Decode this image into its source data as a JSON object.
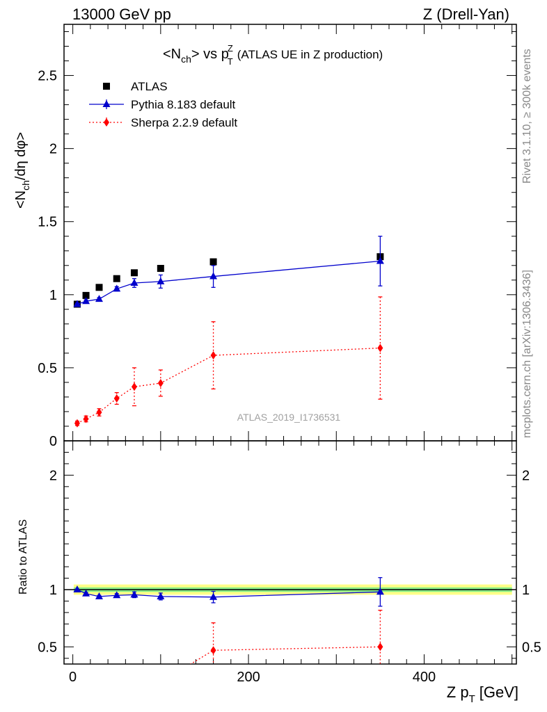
{
  "header": {
    "left": "13000 GeV pp",
    "right": "Z (Drell-Yan)"
  },
  "side_text": {
    "rivet": "Rivet 3.1.10, ≥ 300k events",
    "mcplots": "mcplots.cern.ch [arXiv:1306.3436]"
  },
  "watermark": "ATLAS_2019_I1736531",
  "chart_data": [
    {
      "type": "scatter",
      "title": "<N_ch> vs p_T^Z (ATLAS UE in Z production)",
      "title_main": "<N",
      "title_sub1": "ch",
      "title_mid": "> vs p",
      "title_sup": "Z",
      "title_sub2": "T",
      "title_rest": "(ATLAS UE in Z production)",
      "ylabel": "<N_ch/dη dφ>",
      "ylabel_a": "<N",
      "ylabel_sub": "ch",
      "ylabel_b": "/dη dφ>",
      "xlim": [
        -10,
        505
      ],
      "ylim": [
        0,
        2.85
      ],
      "yticks": [
        0,
        0.5,
        1,
        1.5,
        2,
        2.5
      ],
      "ytick_labels": [
        "0",
        "0.5",
        "1",
        "1.5",
        "2",
        "2.5"
      ],
      "legend_position": "top-left",
      "series": [
        {
          "name": "ATLAS",
          "color": "#000000",
          "marker": "square",
          "line": "none",
          "x": [
            5,
            15,
            30,
            50,
            70,
            100,
            160,
            350
          ],
          "y": [
            0.935,
            0.995,
            1.05,
            1.11,
            1.15,
            1.18,
            1.225,
            1.26
          ],
          "err": [
            0.01,
            0.01,
            0.01,
            0.01,
            0.012,
            0.012,
            0.015,
            0.02
          ]
        },
        {
          "name": "Pythia 8.183 default",
          "color": "#0000cc",
          "marker": "triangle",
          "line": "solid",
          "x": [
            5,
            15,
            30,
            50,
            70,
            100,
            160,
            350
          ],
          "y": [
            0.935,
            0.955,
            0.97,
            1.04,
            1.08,
            1.09,
            1.125,
            1.23
          ],
          "err": [
            0.005,
            0.01,
            0.01,
            0.015,
            0.03,
            0.045,
            0.075,
            0.17
          ]
        },
        {
          "name": "Sherpa 2.2.9 default",
          "color": "#ff0000",
          "marker": "diamond",
          "line": "dotted",
          "x": [
            5,
            15,
            30,
            50,
            70,
            100,
            160,
            350
          ],
          "y": [
            0.12,
            0.15,
            0.195,
            0.29,
            0.37,
            0.395,
            0.585,
            0.635
          ],
          "err": [
            0.015,
            0.02,
            0.025,
            0.04,
            0.13,
            0.09,
            0.23,
            0.35
          ]
        }
      ]
    },
    {
      "type": "scatter",
      "title": "",
      "xlabel": "Z p_T [GeV]",
      "xlabel_a": "Z p",
      "xlabel_sub": "T",
      "xlabel_b": "[GeV]",
      "ylabel": "Ratio to ATLAS",
      "xlim": [
        -10,
        505
      ],
      "ylim": [
        0.35,
        2.3
      ],
      "xticks": [
        0,
        200,
        400
      ],
      "xtick_labels": [
        "0",
        "200",
        "400"
      ],
      "yticks": [
        0.5,
        1,
        2
      ],
      "ytick_labels": [
        "0.5",
        "1",
        "2"
      ],
      "bands": {
        "green_half_width": 0.02,
        "yellow_half_width": 0.045
      },
      "series": [
        {
          "name": "Pythia 8.183 default",
          "color": "#0000cc",
          "marker": "triangle",
          "line": "solid",
          "x": [
            5,
            15,
            30,
            50,
            70,
            100,
            160,
            350
          ],
          "y": [
            1.0,
            0.965,
            0.94,
            0.95,
            0.955,
            0.94,
            0.935,
            0.98
          ],
          "err": [
            0.005,
            0.01,
            0.01,
            0.015,
            0.025,
            0.03,
            0.05,
            0.125
          ]
        },
        {
          "name": "Sherpa 2.2.9 default",
          "color": "#ff0000",
          "marker": "diamond",
          "line": "dotted",
          "x": [
            160,
            350
          ],
          "y": [
            0.47,
            0.5
          ],
          "err": [
            0.24,
            0.32
          ],
          "segment_from_below": {
            "x": 130,
            "y": 0.33
          }
        }
      ]
    }
  ]
}
